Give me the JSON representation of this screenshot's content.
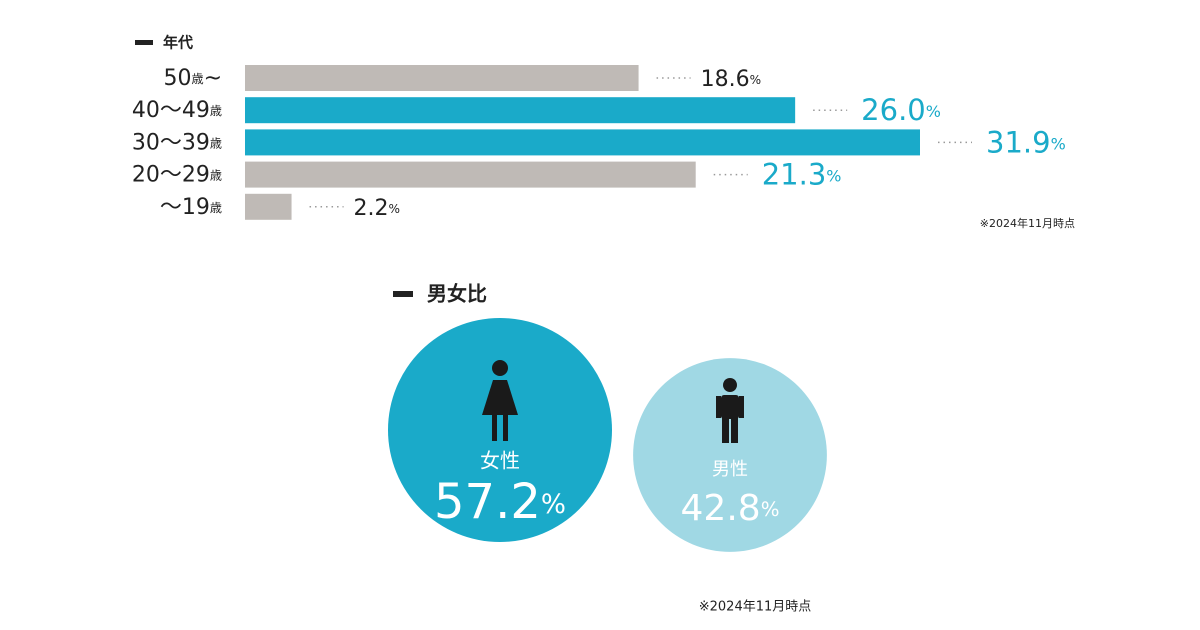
{
  "chart_data": [
    {
      "type": "bar",
      "title": "年代",
      "categories": [
        "50歳~",
        "40～49歳",
        "30～39歳",
        "20～29歳",
        "～19歳"
      ],
      "values": [
        18.6,
        26.0,
        31.9,
        21.3,
        2.2
      ],
      "value_labels": [
        "18.6%",
        "26.0%",
        "31.9%",
        "21.3%",
        "2.2%"
      ],
      "colors": [
        "#bfbab6",
        "#1aaac9",
        "#1aaac9",
        "#bfbab6",
        "#bfbab6"
      ],
      "label_colors": [
        "#222222",
        "#1aaac9",
        "#1aaac9",
        "#1aaac9",
        "#222222"
      ],
      "note": "※2024年11月時点"
    },
    {
      "type": "bubble",
      "title": "男女比",
      "categories": [
        "女性",
        "男性"
      ],
      "values": [
        57.2,
        42.8
      ],
      "value_labels": [
        "57.2%",
        "42.8%"
      ],
      "colors": [
        "#1aaac9",
        "#a0d8e4"
      ],
      "note": "※2024年11月時点"
    }
  ]
}
